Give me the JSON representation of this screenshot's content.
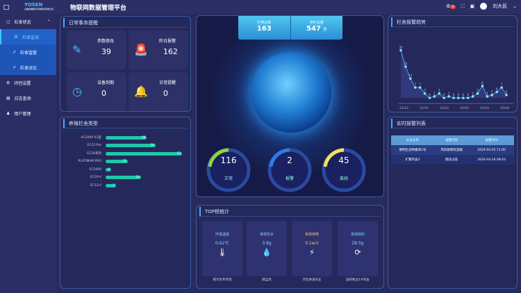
{
  "header": {
    "logo": "YOSEN",
    "logo_sub": "云南优雅数字环境科技有限公司",
    "title": "物联网数据管理平台",
    "notification_count": "2",
    "user": "刘大民"
  },
  "sidebar": {
    "items": [
      {
        "label": "栏舍状态"
      },
      {
        "label": "栏舍监测"
      },
      {
        "label": "栏舍监管"
      },
      {
        "label": "栏舍对比"
      },
      {
        "label": "环控设置"
      },
      {
        "label": "日志查询"
      },
      {
        "label": "用户管理"
      }
    ]
  },
  "daily": {
    "title": "日常事务提醒",
    "cards": [
      {
        "label": "参数修改",
        "value": "39",
        "icon": "pencil-icon"
      },
      {
        "label": "昨日报警",
        "value": "162",
        "icon": "alarm-light-icon"
      },
      {
        "label": "设备到期",
        "value": "0",
        "icon": "clock-icon"
      },
      {
        "label": "日常提醒",
        "value": "0",
        "icon": "bell-icon"
      }
    ]
  },
  "types": {
    "title": "养殖栏舍类型",
    "chart_data": {
      "type": "bar",
      "orientation": "horizontal",
      "categories": [
        "AC2000 X1型",
        "EC12-Pro",
        "EC20系列",
        "PLATINUM PRO",
        "EC1000",
        "EC20-V",
        "EC12-V"
      ],
      "values": [
        28,
        34,
        52,
        15,
        3,
        24,
        7
      ]
    }
  },
  "center": {
    "total_label": "栏舍总数",
    "total": "163",
    "stock_label": "存栏总量",
    "stock": "547",
    "stock_unit": "万",
    "gauges": [
      {
        "label": "正常",
        "value": "116",
        "color": "#8dd63a"
      },
      {
        "label": "报警",
        "value": "2",
        "color": "#2f7bea"
      },
      {
        "label": "离线",
        "value": "45",
        "color": "#f2e15a"
      }
    ]
  },
  "top": {
    "title": "TOP榜统计",
    "cards": [
      {
        "label": "环境温度",
        "value": "0.62℃",
        "icon": "thermometer-icon",
        "name": "那华农专鸡场",
        "color": "#7fd7ff"
      },
      {
        "label": "单体饮水",
        "value": "3.8g",
        "icon": "water-drop-icon",
        "name": "郝孟商",
        "color": "#7fd7ff"
      },
      {
        "label": "单体用电",
        "value": "0.1w.h",
        "icon": "lightning-icon",
        "name": "河北林溪农业",
        "color": "#f5c96a"
      },
      {
        "label": "单体耗料",
        "value": "28.5g",
        "icon": "share-cycle-icon",
        "name": "国内牧业1#鸡舍",
        "color": "#7fd7ff"
      }
    ]
  },
  "trend": {
    "title": "栏舍报警趋势",
    "chart_data": {
      "type": "line",
      "values": [
        32,
        21,
        13,
        7,
        7,
        3,
        0,
        1,
        3,
        0,
        1,
        0,
        0,
        0,
        0,
        1,
        3,
        8,
        1,
        2,
        4,
        7,
        2
      ],
      "x_tick_labels": [
        "25/12",
        "25/16",
        "25/20",
        "26/00",
        "26/04",
        "26/08"
      ],
      "ylim": [
        0,
        35
      ]
    }
  },
  "alarms": {
    "title": "实时报警列表",
    "columns": [
      "栏舍名称",
      "报警内容",
      "报警时间"
    ],
    "rows": [
      [
        "黎明生态种禽场1号",
        "风机故障高温报",
        "2024-04-25 11:00"
      ],
      [
        "扩繁鸡舍3",
        "静压过低",
        "2024-04-26 08:43"
      ]
    ]
  }
}
